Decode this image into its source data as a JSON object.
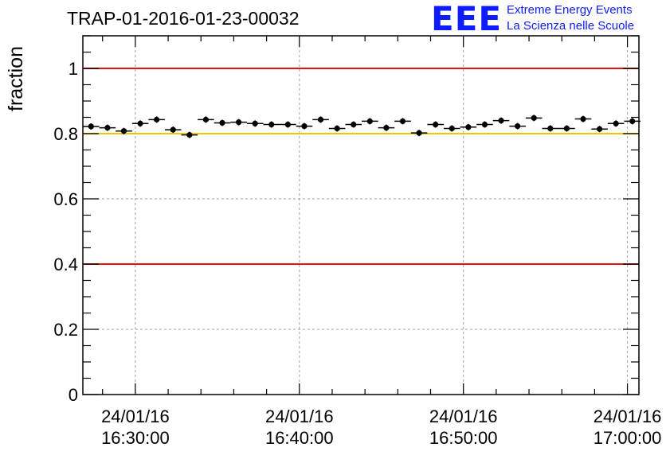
{
  "header": {
    "title": "TRAP-01-2016-01-23-00032",
    "logo_text": "EEE",
    "org_line1": "Extreme Energy Events",
    "org_line2": "La Scienza nelle Scuole"
  },
  "colors": {
    "logo": "#0d1cff",
    "limit_red": "#e8120c",
    "limit_yellow": "#f2c500",
    "points": "#000000",
    "grid": "#a0a0a0"
  },
  "chart_data": {
    "type": "scatter",
    "title": "TRAP-01-2016-01-23-00032",
    "xlabel": "",
    "ylabel": "fraction",
    "x_unit": "minutes after 16:00:00 on 24/01/16",
    "xlim": [
      26.8,
      60.7
    ],
    "ylim": [
      0,
      1.1
    ],
    "grid": true,
    "xticks": [
      {
        "date": "24/01/16",
        "time": "16:30:00",
        "value": 30
      },
      {
        "date": "24/01/16",
        "time": "16:40:00",
        "value": 40
      },
      {
        "date": "24/01/16",
        "time": "16:50:00",
        "value": 50
      },
      {
        "date": "24/01/16",
        "time": "17:00:00",
        "value": 60
      }
    ],
    "yticks": [
      "0",
      "0.2",
      "0.4",
      "0.6",
      "0.8",
      "1"
    ],
    "ytick_values": [
      0,
      0.2,
      0.4,
      0.6,
      0.8,
      1.0
    ],
    "reference_lines": [
      {
        "y": 1.0,
        "color": "red"
      },
      {
        "y": 0.8,
        "color": "yellow"
      },
      {
        "y": 0.4,
        "color": "red"
      }
    ],
    "bin_width": 1,
    "x": [
      27.3,
      28.3,
      29.3,
      30.3,
      31.3,
      32.3,
      33.3,
      34.3,
      35.3,
      36.3,
      37.3,
      38.3,
      39.3,
      40.3,
      41.3,
      42.3,
      43.3,
      44.3,
      45.3,
      46.3,
      47.3,
      48.3,
      49.3,
      50.3,
      51.3,
      52.3,
      53.3,
      54.3,
      55.3,
      56.3,
      57.3,
      58.3,
      59.3,
      60.3
    ],
    "y": [
      0.822,
      0.818,
      0.808,
      0.831,
      0.843,
      0.812,
      0.796,
      0.843,
      0.833,
      0.835,
      0.831,
      0.828,
      0.828,
      0.823,
      0.843,
      0.816,
      0.828,
      0.838,
      0.818,
      0.838,
      0.802,
      0.828,
      0.816,
      0.82,
      0.828,
      0.84,
      0.823,
      0.848,
      0.816,
      0.816,
      0.845,
      0.814,
      0.831,
      0.838
    ]
  }
}
